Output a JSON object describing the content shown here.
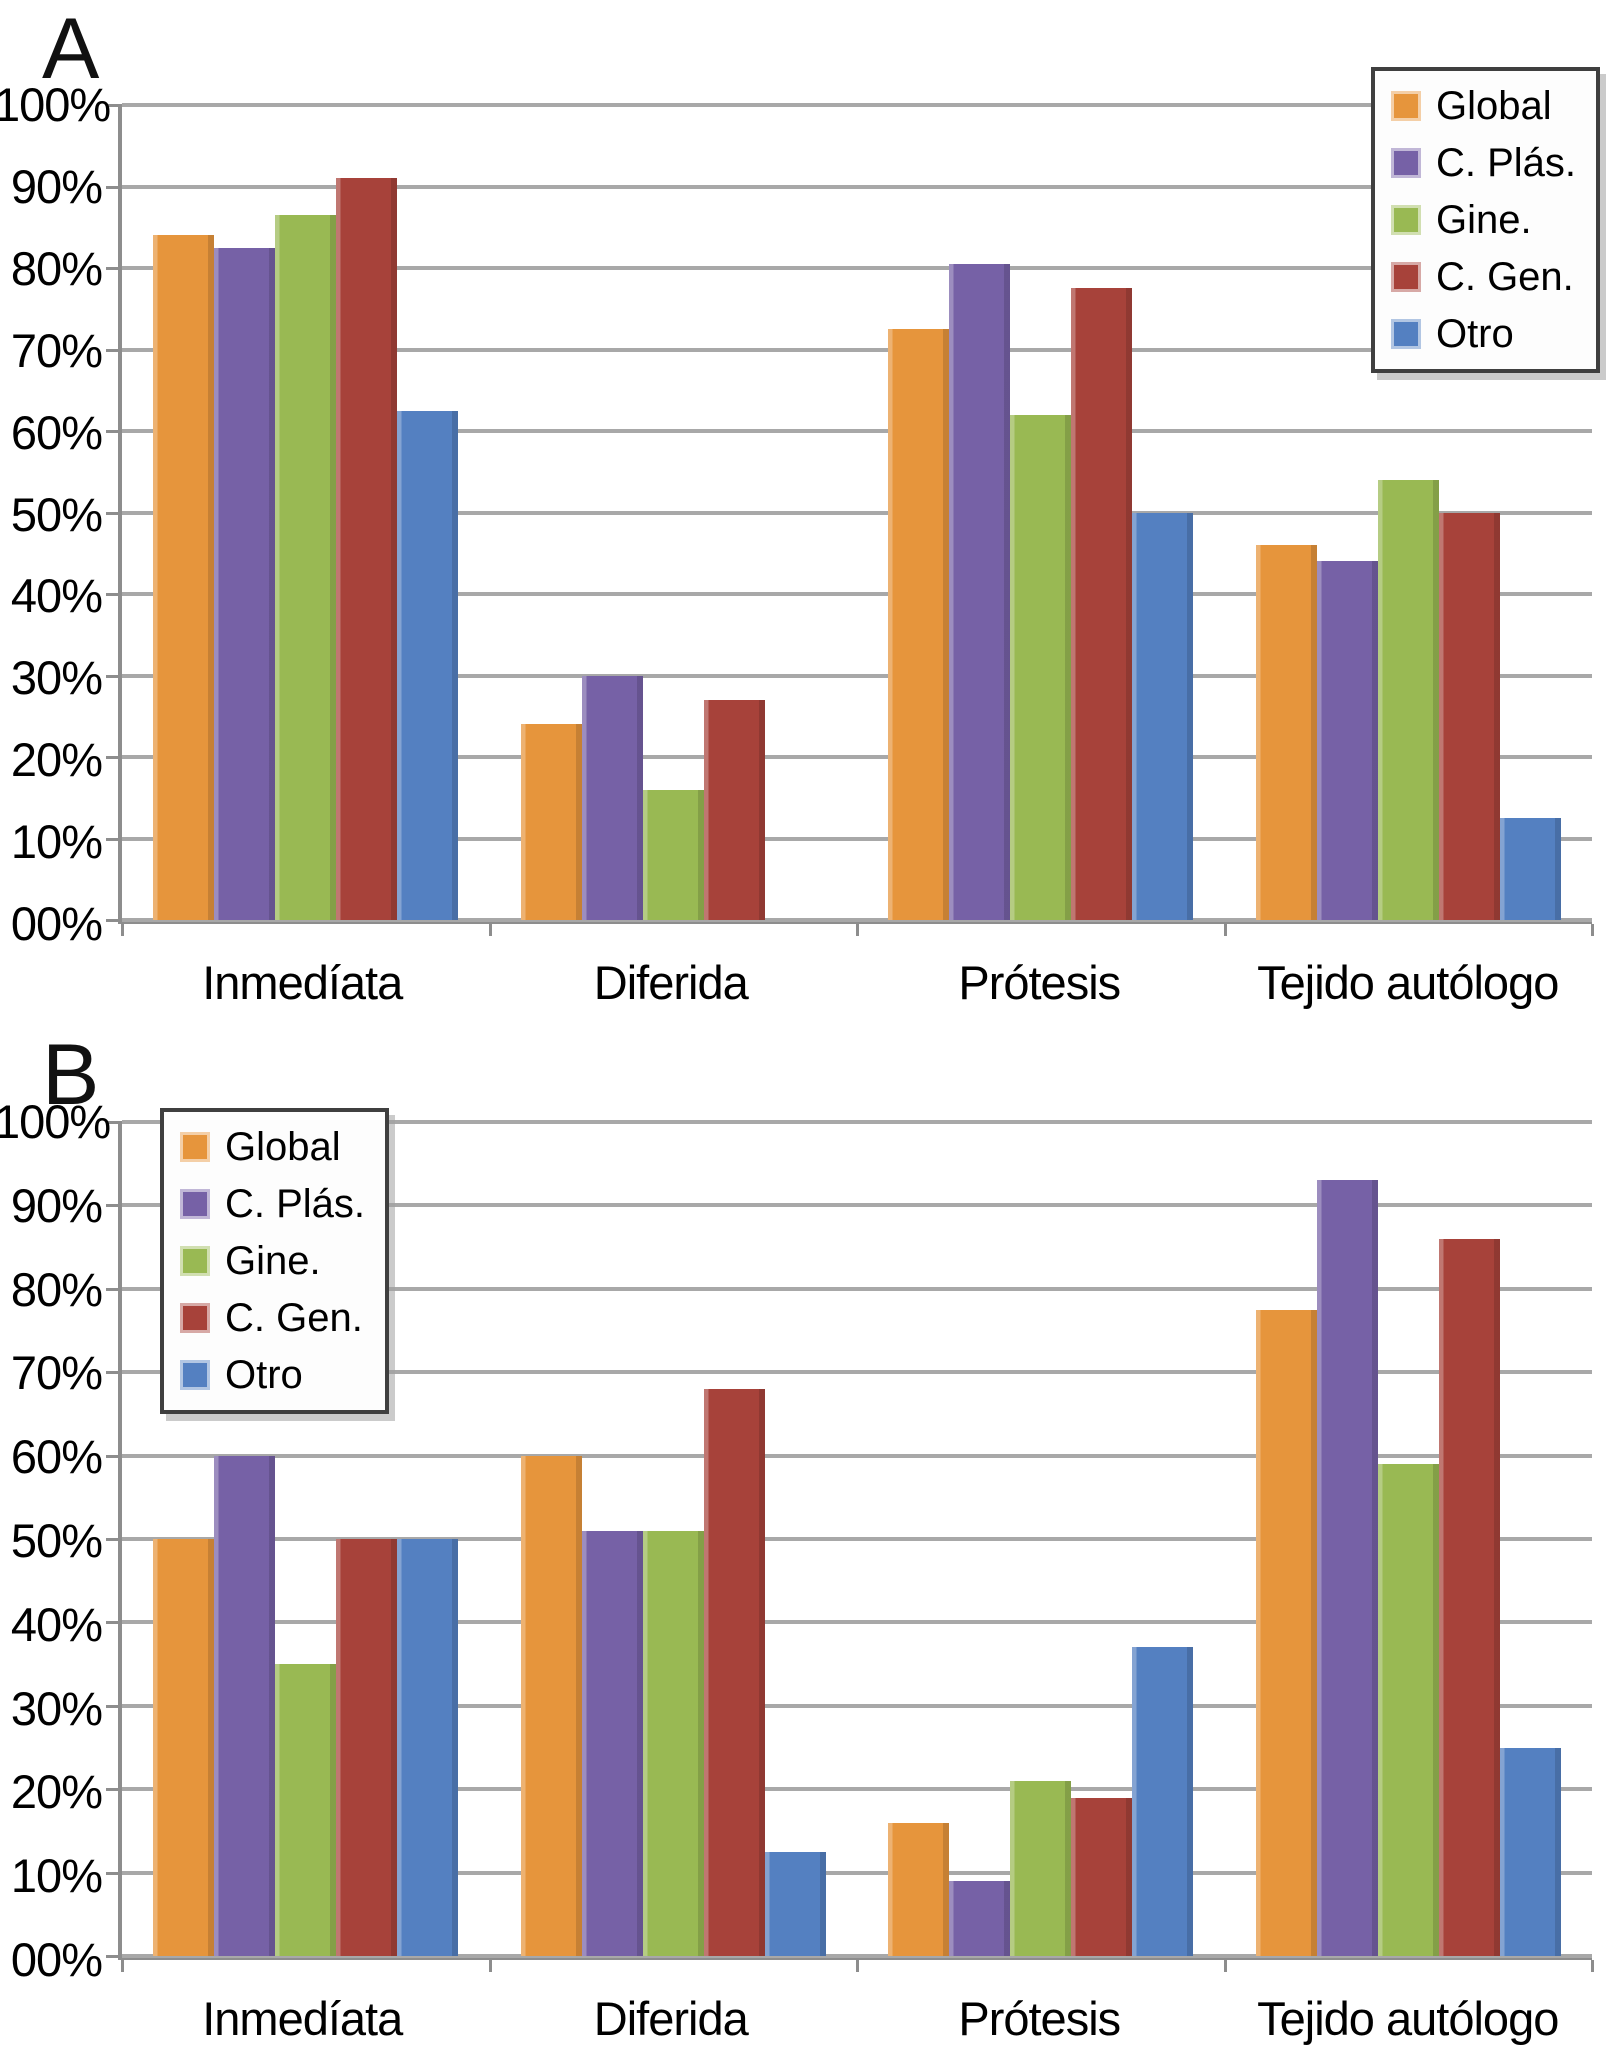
{
  "figure_title": "",
  "chart_data": [
    {
      "type": "bar",
      "panel_label": "A",
      "title": "",
      "xlabel": "",
      "ylabel": "",
      "ylim": [
        0,
        100
      ],
      "grid": true,
      "gridline_step_percent": 10,
      "legend_position": "top-right",
      "y_tick_labels": [
        "100%",
        "90%",
        "80%",
        "70%",
        "60%",
        "50%",
        "40%",
        "30%",
        "20%",
        "10%",
        "00%"
      ],
      "categories": [
        "Inmedíata",
        "Diferida",
        "Prótesis",
        "Tejido autólogo"
      ],
      "series": [
        {
          "name": "Global",
          "color": "#E6953C",
          "values": [
            84,
            24,
            72.5,
            46
          ]
        },
        {
          "name": "C. Plás.",
          "color": "#7661A6",
          "values": [
            82.5,
            30,
            80.5,
            44
          ]
        },
        {
          "name": "Gine.",
          "color": "#99B953",
          "values": [
            86.5,
            16,
            62,
            54
          ]
        },
        {
          "name": "C. Gen.",
          "color": "#A7423A",
          "values": [
            91,
            27,
            77.5,
            50
          ]
        },
        {
          "name": "Otro",
          "color": "#5480C1",
          "values": [
            62.5,
            0,
            50,
            12.5
          ]
        }
      ]
    },
    {
      "type": "bar",
      "panel_label": "B",
      "title": "",
      "xlabel": "",
      "ylabel": "",
      "ylim": [
        0,
        100
      ],
      "grid": true,
      "gridline_step_percent": 10,
      "legend_position": "top-left",
      "y_tick_labels": [
        "100%",
        "90%",
        "80%",
        "70%",
        "60%",
        "50%",
        "40%",
        "30%",
        "20%",
        "10%",
        "00%"
      ],
      "categories": [
        "Inmedíata",
        "Diferida",
        "Prótesis",
        "Tejido autólogo"
      ],
      "series": [
        {
          "name": "Global",
          "color": "#E6953C",
          "values": [
            50,
            60,
            16,
            77.5
          ]
        },
        {
          "name": "C. Plás.",
          "color": "#7661A6",
          "values": [
            60,
            51,
            9,
            93
          ]
        },
        {
          "name": "Gine.",
          "color": "#99B953",
          "values": [
            35,
            51,
            21,
            59
          ]
        },
        {
          "name": "C. Gen.",
          "color": "#A7423A",
          "values": [
            50,
            68,
            19,
            86
          ]
        },
        {
          "name": "Otro",
          "color": "#5480C1",
          "values": [
            50,
            12.5,
            37,
            25
          ]
        }
      ]
    }
  ]
}
